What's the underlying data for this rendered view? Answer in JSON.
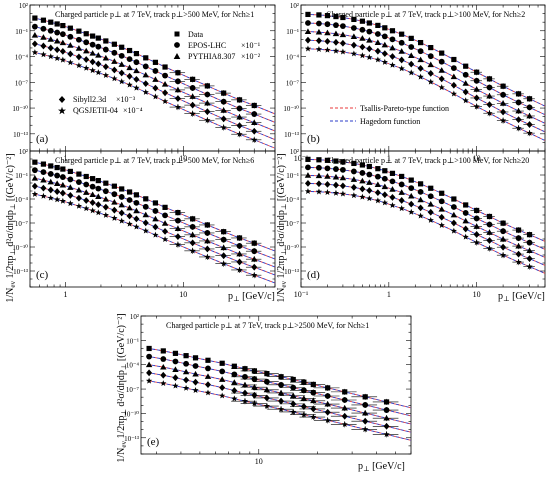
{
  "figure": {
    "ylabel_text": "1/N",
    "ylabel_sub": "ev",
    "ylabel_rest": " 1/2πp",
    "ylabel_sub2": "⊥",
    "ylabel_tail": " d²σ/dηdp",
    "ylabel_sub3": "⊥",
    "ylabel_unit": " [(GeV/c)⁻²]",
    "xlabel_main": "p",
    "xlabel_sub": "⊥",
    "xlabel_unit": " [GeV/c]"
  },
  "legend_markers": {
    "data": "Data",
    "epos": "EPOS-LHC",
    "epos_scale": "×10⁻¹",
    "pythia": "PYTHIA8.307",
    "pythia_scale": "×10⁻²",
    "sibyll": "Sibyll2.3d",
    "sibyll_scale": "×10⁻³",
    "qgs": "QGSJETII-04",
    "qgs_scale": "×10⁻⁴"
  },
  "legend_lines": {
    "tsallis": "Tsallis-Pareto-type function",
    "hagedorn": "Hagedorn function"
  },
  "colors": {
    "tsallis": "#e8393b",
    "hagedorn": "#2b3ec9",
    "marker": "#000000"
  },
  "chart_data": [
    {
      "type": "scatter",
      "panel_label": "(a)",
      "title": "Charged particle p⊥ at 7 TeV, track p⊥>500 MeV, for Nch≥1",
      "xscale": "log",
      "yscale": "log",
      "xlim": [
        0.5,
        60
      ],
      "ylim": [
        1e-15,
        100
      ],
      "xticks": [
        "1",
        "10"
      ],
      "yticks": [
        "10²",
        "10⁻¹",
        "10⁻⁴",
        "10⁻⁷",
        "10⁻¹⁰",
        "10⁻¹³"
      ],
      "x": [
        0.55,
        0.65,
        0.75,
        0.85,
        0.95,
        1.1,
        1.3,
        1.5,
        1.7,
        1.9,
        2.2,
        2.6,
        3.0,
        3.5,
        4.0,
        4.8,
        5.8,
        7.0,
        9.0,
        12.0,
        16.0,
        22.0,
        30.0,
        40.0
      ],
      "series": [
        {
          "name": "Data",
          "values": [
            3.0,
            1.7,
            1.0,
            0.62,
            0.4,
            0.2,
            0.09,
            0.045,
            0.024,
            0.014,
            0.0065,
            0.0027,
            0.0012,
            0.0005,
            0.00022,
            7e-05,
            2.1e-05,
            6e-06,
            1.3e-06,
            2.2e-07,
            3.8e-08,
            5.5e-09,
            9e-10,
            2e-10
          ]
        },
        {
          "name": "EPOS-LHC",
          "values": [
            0.3,
            0.17,
            0.1,
            0.062,
            0.04,
            0.02,
            0.009,
            0.0045,
            0.0024,
            0.0014,
            0.00065,
            0.00027,
            0.00012,
            5e-05,
            2.2e-05,
            7e-06,
            2.1e-06,
            6e-07,
            1.3e-07,
            2.2e-08,
            3.8e-09,
            5.5e-10,
            9e-11,
            2e-11
          ]
        },
        {
          "name": "PYTHIA8.307",
          "values": [
            0.03,
            0.017,
            0.01,
            0.0062,
            0.004,
            0.002,
            0.0009,
            0.00045,
            0.00024,
            0.00014,
            6.5e-05,
            2.7e-05,
            1.2e-05,
            5e-06,
            2.2e-06,
            7e-07,
            2.1e-07,
            6e-08,
            1.3e-08,
            2.2e-09,
            3.8e-10,
            5.5e-11,
            9e-12,
            2e-12
          ]
        },
        {
          "name": "Sibyll2.3d",
          "values": [
            0.003,
            0.0017,
            0.001,
            0.00062,
            0.0004,
            0.0002,
            9e-05,
            4.5e-05,
            2.4e-05,
            1.4e-05,
            6.5e-06,
            2.7e-06,
            1.2e-06,
            5e-07,
            2.2e-07,
            7e-08,
            2.1e-08,
            6e-09,
            1.3e-09,
            2.2e-10,
            3.8e-11,
            5.5e-12,
            9e-13,
            2e-13
          ]
        },
        {
          "name": "QGSJETII-04",
          "values": [
            0.0003,
            0.00017,
            0.0001,
            6.2e-05,
            4e-05,
            2e-05,
            9e-06,
            4.5e-06,
            2.4e-06,
            1.4e-06,
            6.5e-07,
            2.7e-07,
            1.2e-07,
            5e-08,
            2.2e-08,
            7e-09,
            2.1e-09,
            6e-10,
            1.3e-10,
            2.2e-11,
            3.8e-12,
            5.5e-13,
            9e-14,
            2e-14
          ]
        }
      ]
    },
    {
      "type": "scatter",
      "panel_label": "(b)",
      "title": "Charged particle p⊥ at 7 TeV, track p⊥>100 MeV, for Nch≥2",
      "xscale": "log",
      "yscale": "log",
      "xlim": [
        0.1,
        60
      ],
      "ylim": [
        1e-15,
        100
      ],
      "xticks": [
        "10⁻¹",
        "1",
        "10"
      ],
      "yticks": [
        "10²",
        "10⁻¹",
        "10⁻⁴",
        "10⁻⁷",
        "10⁻¹⁰",
        "10⁻¹³"
      ],
      "x": [
        0.12,
        0.16,
        0.2,
        0.25,
        0.3,
        0.4,
        0.5,
        0.6,
        0.75,
        0.9,
        1.1,
        1.4,
        1.8,
        2.3,
        3.0,
        4.0,
        5.5,
        7.5,
        10.0,
        14.0,
        20.0,
        30.0,
        40.0
      ],
      "series": [
        {
          "name": "Data",
          "values": [
            8.0,
            7.0,
            5.8,
            4.5,
            3.5,
            2.1,
            1.3,
            0.8,
            0.42,
            0.22,
            0.1,
            0.04,
            0.013,
            0.0042,
            0.0011,
            0.00025,
            4.5e-05,
            7.5e-06,
            1.5e-06,
            2.5e-07,
            3.5e-08,
            4.5e-09,
            1.2e-09
          ]
        },
        {
          "name": "EPOS-LHC",
          "values": [
            0.8,
            0.7,
            0.58,
            0.45,
            0.35,
            0.21,
            0.13,
            0.08,
            0.042,
            0.022,
            0.01,
            0.004,
            0.0013,
            0.00042,
            0.00011,
            2.5e-05,
            4.5e-06,
            7.5e-07,
            1.5e-07,
            2.5e-08,
            3.5e-09,
            4.5e-10,
            1.2e-10
          ]
        },
        {
          "name": "PYTHIA8.307",
          "values": [
            0.08,
            0.07,
            0.058,
            0.045,
            0.035,
            0.021,
            0.013,
            0.008,
            0.0042,
            0.0022,
            0.001,
            0.0004,
            0.00013,
            4.2e-05,
            1.1e-05,
            2.5e-06,
            4.5e-07,
            7.5e-08,
            1.5e-08,
            2.5e-09,
            3.5e-10,
            4.5e-11,
            1.2e-11
          ]
        },
        {
          "name": "Sibyll2.3d",
          "values": [
            0.008,
            0.007,
            0.0058,
            0.0045,
            0.0035,
            0.0021,
            0.0013,
            0.0008,
            0.00042,
            0.00022,
            0.0001,
            4e-05,
            1.3e-05,
            4.2e-06,
            1.1e-06,
            2.5e-07,
            4.5e-08,
            7.5e-09,
            1.5e-09,
            2.5e-10,
            3.5e-11,
            4.5e-12,
            1.2e-12
          ]
        },
        {
          "name": "QGSJETII-04",
          "values": [
            0.0008,
            0.0007,
            0.00058,
            0.00045,
            0.00035,
            0.00021,
            0.00013,
            8e-05,
            4.2e-05,
            2.2e-05,
            1e-05,
            4e-06,
            1.3e-06,
            4.2e-07,
            1.1e-07,
            2.5e-08,
            4.5e-09,
            7.5e-10,
            1.5e-10,
            2.5e-11,
            3.5e-12,
            4.5e-13,
            1.2e-13
          ]
        }
      ]
    },
    {
      "type": "scatter",
      "panel_label": "(c)",
      "title": "Charged particle p⊥ at 7 TeV, track p⊥>500 MeV, for Nch≥6",
      "xscale": "log",
      "yscale": "log",
      "xlim": [
        0.5,
        60
      ],
      "ylim": [
        1e-15,
        100
      ],
      "xticks": [
        "1",
        "10"
      ],
      "yticks": [
        "10²",
        "10⁻¹",
        "10⁻⁴",
        "10⁻⁷",
        "10⁻¹⁰",
        "10⁻¹³"
      ],
      "x": [
        0.55,
        0.65,
        0.75,
        0.85,
        0.95,
        1.1,
        1.3,
        1.5,
        1.7,
        1.9,
        2.2,
        2.6,
        3.0,
        3.5,
        4.0,
        4.8,
        5.8,
        7.0,
        9.0,
        12.0,
        16.0,
        22.0,
        30.0,
        40.0
      ],
      "series": [
        {
          "name": "Data",
          "values": [
            4.0,
            2.3,
            1.35,
            0.85,
            0.55,
            0.28,
            0.13,
            0.065,
            0.035,
            0.02,
            0.0095,
            0.004,
            0.0018,
            0.00075,
            0.00033,
            0.000105,
            3.2e-05,
            9e-06,
            2e-06,
            3.3e-07,
            5.7e-08,
            8.2e-09,
            1.35e-09,
            3e-10
          ]
        },
        {
          "name": "EPOS-LHC",
          "values": [
            0.4,
            0.23,
            0.135,
            0.085,
            0.055,
            0.028,
            0.013,
            0.0065,
            0.0035,
            0.002,
            0.00095,
            0.0004,
            0.00018,
            7.5e-05,
            3.3e-05,
            1.05e-05,
            3.2e-06,
            9e-07,
            2e-07,
            3.3e-08,
            5.7e-09,
            8.2e-10,
            1.35e-10,
            3e-11
          ]
        },
        {
          "name": "PYTHIA8.307",
          "values": [
            0.04,
            0.023,
            0.0135,
            0.0085,
            0.0055,
            0.0028,
            0.0013,
            0.00065,
            0.00035,
            0.0002,
            9.5e-05,
            4e-05,
            1.8e-05,
            7.5e-06,
            3.3e-06,
            1.05e-06,
            3.2e-07,
            9e-08,
            2e-08,
            3.3e-09,
            5.7e-10,
            8.2e-11,
            1.35e-11,
            3e-12
          ]
        },
        {
          "name": "Sibyll2.3d",
          "values": [
            0.004,
            0.0023,
            0.00135,
            0.00085,
            0.00055,
            0.00028,
            0.00013,
            6.5e-05,
            3.5e-05,
            2e-05,
            9.5e-06,
            4e-06,
            1.8e-06,
            7.5e-07,
            3.3e-07,
            1.05e-07,
            3.2e-08,
            9e-09,
            2e-09,
            3.3e-10,
            5.7e-11,
            8.2e-12,
            1.35e-12,
            3e-13
          ]
        },
        {
          "name": "QGSJETII-04",
          "values": [
            0.0004,
            0.00023,
            0.000135,
            8.5e-05,
            5.5e-05,
            2.8e-05,
            1.3e-05,
            6.5e-06,
            3.5e-06,
            2e-06,
            9.5e-07,
            4e-07,
            1.8e-07,
            7.5e-08,
            3.3e-08,
            1.05e-08,
            3.2e-09,
            9e-10,
            2e-10,
            3.3e-11,
            5.7e-12,
            8.2e-13,
            1.35e-13,
            3e-14
          ]
        }
      ]
    },
    {
      "type": "scatter",
      "panel_label": "(d)",
      "title": "Charged particle p⊥ at 7 TeV, track p⊥>100 MeV, for Nch≥20",
      "xscale": "log",
      "yscale": "log",
      "xlim": [
        0.1,
        60
      ],
      "ylim": [
        1e-15,
        100
      ],
      "xticks": [
        "10⁻¹",
        "1",
        "10"
      ],
      "yticks": [
        "10²",
        "10⁻¹",
        "10⁻⁴",
        "10⁻⁷",
        "10⁻¹⁰",
        "10⁻¹³"
      ],
      "x": [
        0.12,
        0.16,
        0.2,
        0.25,
        0.3,
        0.4,
        0.5,
        0.6,
        0.75,
        0.9,
        1.1,
        1.4,
        1.8,
        2.3,
        3.0,
        4.0,
        5.5,
        7.5,
        10.0,
        14.0,
        20.0,
        30.0,
        40.0
      ],
      "series": [
        {
          "name": "Data",
          "values": [
            9.0,
            8.0,
            6.8,
            5.5,
            4.4,
            2.8,
            1.8,
            1.15,
            0.62,
            0.34,
            0.16,
            0.066,
            0.023,
            0.0078,
            0.0022,
            0.00052,
            0.0001,
            1.8e-05,
            3.7e-06,
            6.5e-07,
            9.5e-08,
            1.3e-08,
            3.5e-09
          ]
        },
        {
          "name": "EPOS-LHC",
          "values": [
            0.9,
            0.8,
            0.68,
            0.55,
            0.44,
            0.28,
            0.18,
            0.115,
            0.062,
            0.034,
            0.016,
            0.0066,
            0.0023,
            0.00078,
            0.00022,
            5.2e-05,
            1e-05,
            1.8e-06,
            3.7e-07,
            6.5e-08,
            9.5e-09,
            1.3e-09,
            3.5e-10
          ]
        },
        {
          "name": "PYTHIA8.307",
          "values": [
            0.09,
            0.08,
            0.068,
            0.055,
            0.044,
            0.028,
            0.018,
            0.0115,
            0.0062,
            0.0034,
            0.0016,
            0.00066,
            0.00023,
            7.8e-05,
            2.2e-05,
            5.2e-06,
            1e-06,
            1.8e-07,
            3.7e-08,
            6.5e-09,
            9.5e-10,
            1.3e-10,
            3.5e-11
          ]
        },
        {
          "name": "Sibyll2.3d",
          "values": [
            0.009,
            0.008,
            0.0068,
            0.0055,
            0.0044,
            0.0028,
            0.0018,
            0.00115,
            0.00062,
            0.00034,
            0.00016,
            6.6e-05,
            2.3e-05,
            7.8e-06,
            2.2e-06,
            5.2e-07,
            1e-07,
            1.8e-08,
            3.7e-09,
            6.5e-10,
            9.5e-11,
            1.3e-11,
            3.5e-12
          ]
        },
        {
          "name": "QGSJETII-04",
          "values": [
            0.0009,
            0.0008,
            0.00068,
            0.00055,
            0.00044,
            0.00028,
            0.00018,
            0.000115,
            6.2e-05,
            3.4e-05,
            1.6e-05,
            6.6e-06,
            2.3e-06,
            7.8e-07,
            2.2e-07,
            5.2e-08,
            1e-08,
            1.8e-09,
            3.7e-10,
            6.5e-11,
            9.5e-12,
            1.3e-12,
            3.5e-13
          ]
        }
      ]
    },
    {
      "type": "scatter",
      "panel_label": "(e)",
      "title": "Charged particle p⊥ at 7 TeV, track p⊥>2500 MeV, for Nch≥1",
      "xscale": "log",
      "yscale": "log",
      "xlim": [
        2.5,
        60
      ],
      "ylim": [
        1e-15,
        100
      ],
      "xticks": [
        "10"
      ],
      "yticks": [
        "10²",
        "10⁻¹",
        "10⁻⁴",
        "10⁻⁷",
        "10⁻¹⁰",
        "10⁻¹³"
      ],
      "x": [
        2.75,
        3.25,
        3.75,
        4.25,
        4.75,
        5.5,
        6.5,
        7.5,
        8.5,
        9.5,
        11.0,
        13.0,
        15.0,
        17.0,
        19.0,
        22.5,
        27.5,
        35.0,
        45.0
      ],
      "series": [
        {
          "name": "Data",
          "values": [
            0.01,
            0.005,
            0.0025,
            0.0013,
            0.0007,
            0.00035,
            0.00015,
            6.5e-05,
            3.2e-05,
            1.7e-05,
            8e-06,
            3.3e-06,
            1.5e-06,
            7e-07,
            3.6e-07,
            1.4e-07,
            4.5e-08,
            1.1e-08,
            2.6e-09
          ]
        },
        {
          "name": "EPOS-LHC",
          "values": [
            0.001,
            0.0005,
            0.00025,
            0.00013,
            7e-05,
            3.5e-05,
            1.5e-05,
            6.5e-06,
            3.2e-06,
            1.7e-06,
            8e-07,
            3.3e-07,
            1.5e-07,
            7e-08,
            3.6e-08,
            1.4e-08,
            4.5e-09,
            1.1e-09,
            2.6e-10
          ]
        },
        {
          "name": "PYTHIA8.307",
          "values": [
            0.0001,
            5e-05,
            2.5e-05,
            1.3e-05,
            7e-06,
            3.5e-06,
            1.5e-06,
            6.5e-07,
            3.2e-07,
            1.7e-07,
            8e-08,
            3.3e-08,
            1.5e-08,
            7e-09,
            3.6e-09,
            1.4e-09,
            4.5e-10,
            1.1e-10,
            2.6e-11
          ]
        },
        {
          "name": "Sibyll2.3d",
          "values": [
            1e-05,
            5e-06,
            2.5e-06,
            1.3e-06,
            7e-07,
            3.5e-07,
            1.5e-07,
            6.5e-08,
            3.2e-08,
            1.7e-08,
            8e-09,
            3.3e-09,
            1.5e-09,
            7e-10,
            3.6e-10,
            1.4e-10,
            4.5e-11,
            1.1e-11,
            2.6e-12
          ]
        },
        {
          "name": "QGSJETII-04",
          "values": [
            1e-06,
            5e-07,
            2.5e-07,
            1.3e-07,
            7e-08,
            3.5e-08,
            1.5e-08,
            6.5e-09,
            3.2e-09,
            1.7e-09,
            8e-10,
            3.3e-10,
            1.5e-10,
            7e-11,
            3.6e-11,
            1.4e-11,
            4.5e-12,
            1.1e-12,
            2.6e-13
          ]
        }
      ]
    }
  ]
}
